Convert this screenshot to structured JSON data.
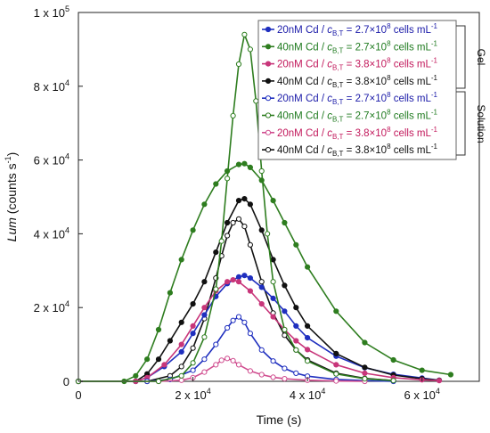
{
  "chart_data": {
    "type": "line",
    "xlabel": "Time (s)",
    "ylabel_main": "Lum",
    "ylabel_units": "(counts s",
    "ylabel_exp": "-1",
    "ylabel_close": ")",
    "xlim": [
      0,
      70000
    ],
    "ylim": [
      0,
      100000
    ],
    "x_ticks": [
      {
        "value": 0,
        "base": "0",
        "exp": ""
      },
      {
        "value": 20000,
        "base": "2 x 10",
        "exp": "4"
      },
      {
        "value": 40000,
        "base": "4 x 10",
        "exp": "4"
      },
      {
        "value": 60000,
        "base": "6 x 10",
        "exp": "4"
      }
    ],
    "y_ticks": [
      {
        "value": 0,
        "base": "0",
        "exp": ""
      },
      {
        "value": 20000,
        "base": "2 x 10",
        "exp": "4"
      },
      {
        "value": 40000,
        "base": "4 x 10",
        "exp": "4"
      },
      {
        "value": 60000,
        "base": "6 x 10",
        "exp": "4"
      },
      {
        "value": 80000,
        "base": "8 x 10",
        "exp": "4"
      },
      {
        "value": 100000,
        "base": "1 x 10",
        "exp": "5"
      }
    ],
    "legend_placement": "top-right",
    "group_labels": [
      "Gel",
      "Solution"
    ],
    "series": [
      {
        "name_conc": "20nM Cd / ",
        "name_sub": "B,T",
        "name_val": "= 2.7×10",
        "name_exp": "8",
        "name_unit": " cells mL",
        "name_unit_exp": "-1",
        "text_color": "#1a1aa8",
        "color": "#1f2fbf",
        "marker": "filled",
        "group": "Gel",
        "x": [
          0,
          10000,
          12000,
          15000,
          18000,
          20000,
          22000,
          24000,
          26000,
          28000,
          29000,
          30000,
          32000,
          34000,
          36000,
          38000,
          40000,
          45000,
          50000,
          55000,
          60000,
          63000
        ],
        "y": [
          0,
          0,
          1000,
          4000,
          8000,
          13000,
          18000,
          23000,
          26500,
          28300,
          28700,
          28000,
          25500,
          22500,
          19000,
          15000,
          11800,
          6800,
          3700,
          1900,
          900,
          300
        ]
      },
      {
        "name_conc": "40nM Cd / ",
        "name_sub": "B,T",
        "name_val": "= 2.7×10",
        "name_exp": "8",
        "name_unit": " cells mL",
        "name_unit_exp": "-1",
        "text_color": "#1e7a1e",
        "color": "#2e7d1f",
        "marker": "filled",
        "group": "Gel",
        "x": [
          0,
          8000,
          10000,
          12000,
          14000,
          16000,
          18000,
          20000,
          22000,
          24000,
          26000,
          28000,
          29000,
          30000,
          32000,
          34000,
          36000,
          38000,
          40000,
          45000,
          50000,
          55000,
          60000,
          65000
        ],
        "y": [
          0,
          0,
          1500,
          6000,
          14000,
          24000,
          33000,
          41000,
          48000,
          53500,
          57000,
          58800,
          59000,
          58000,
          54500,
          49000,
          43000,
          37000,
          31000,
          19000,
          10500,
          5800,
          3000,
          1800
        ]
      },
      {
        "name_conc": "20nM Cd / ",
        "name_sub": "B,T",
        "name_val": "= 3.8×10",
        "name_exp": "8",
        "name_unit": " cells mL",
        "name_unit_exp": "-1",
        "text_color": "#c2185b",
        "color": "#c8367a",
        "marker": "filled",
        "group": "Gel",
        "x": [
          0,
          10000,
          12000,
          15000,
          18000,
          20000,
          22000,
          24000,
          26000,
          27000,
          28000,
          30000,
          32000,
          34000,
          36000,
          38000,
          40000,
          45000,
          50000,
          55000,
          60000,
          63000
        ],
        "y": [
          0,
          0,
          1000,
          4500,
          10000,
          15000,
          20000,
          24500,
          27000,
          27500,
          27000,
          24500,
          21000,
          17500,
          14000,
          11000,
          8600,
          4500,
          2200,
          1000,
          400,
          200
        ]
      },
      {
        "name_conc": "40nM Cd / ",
        "name_sub": "B,T",
        "name_val": "= 3.8×10",
        "name_exp": "8",
        "name_unit": " cells mL",
        "name_unit_exp": "-1",
        "text_color": "#111111",
        "color": "#111111",
        "marker": "filled",
        "group": "Gel",
        "x": [
          0,
          10000,
          12000,
          14000,
          16000,
          18000,
          20000,
          22000,
          24000,
          26000,
          28000,
          29000,
          30000,
          32000,
          34000,
          36000,
          38000,
          40000,
          45000,
          50000,
          55000,
          60000,
          63000
        ],
        "y": [
          0,
          0,
          2000,
          6000,
          11000,
          16000,
          21000,
          27000,
          35000,
          43000,
          49000,
          49500,
          48000,
          41000,
          33000,
          26000,
          20000,
          15000,
          7500,
          3800,
          1700,
          700,
          300
        ]
      },
      {
        "name_conc": "20nM Cd / ",
        "name_sub": "B,T",
        "name_val": "= 2.7×10",
        "name_exp": "8",
        "name_unit": " cells mL",
        "name_unit_exp": "-1",
        "text_color": "#1a1aa8",
        "color": "#1f2fbf",
        "marker": "open",
        "group": "Solution",
        "x": [
          0,
          12000,
          16000,
          20000,
          22000,
          24000,
          26000,
          27000,
          28000,
          29000,
          30000,
          32000,
          34000,
          36000,
          38000,
          40000,
          45000,
          50000,
          55000
        ],
        "y": [
          0,
          0,
          500,
          3000,
          6000,
          10000,
          14500,
          16500,
          17500,
          16000,
          13000,
          8500,
          5500,
          3500,
          2200,
          1400,
          500,
          200,
          0
        ]
      },
      {
        "name_conc": "40nM Cd / ",
        "name_sub": "B,T",
        "name_val": "= 2.7×10",
        "name_exp": "8",
        "name_unit": " cells mL",
        "name_unit_exp": "-1",
        "text_color": "#1e7a1e",
        "color": "#2e7d1f",
        "marker": "open",
        "group": "Solution",
        "x": [
          0,
          14000,
          18000,
          20000,
          22000,
          24000,
          25000,
          26000,
          27000,
          28000,
          29000,
          30000,
          31000,
          32000,
          33000,
          34000,
          36000,
          38000,
          40000,
          45000,
          50000,
          55000
        ],
        "y": [
          0,
          0,
          1500,
          5000,
          12000,
          25000,
          38000,
          55000,
          72000,
          86000,
          94000,
          90000,
          76000,
          57000,
          40000,
          27000,
          14000,
          8500,
          5500,
          2000,
          700,
          200
        ]
      },
      {
        "name_conc": "20nM Cd / ",
        "name_sub": "B,T",
        "name_val": "= 3.8×10",
        "name_exp": "8",
        "name_unit": " cells mL",
        "name_unit_exp": "-1",
        "text_color": "#c2185b",
        "color": "#d04d8f",
        "marker": "open",
        "group": "Solution",
        "x": [
          0,
          14000,
          18000,
          20000,
          22000,
          24000,
          25000,
          26000,
          27000,
          28000,
          30000,
          32000,
          34000,
          36000,
          40000,
          45000,
          50000
        ],
        "y": [
          0,
          0,
          300,
          1000,
          2500,
          4500,
          5700,
          6200,
          5600,
          4500,
          2800,
          1800,
          1100,
          700,
          300,
          100,
          0
        ]
      },
      {
        "name_conc": "40nM Cd / ",
        "name_sub": "B,T",
        "name_val": "= 3.8×10",
        "name_exp": "8",
        "name_unit": " cells mL",
        "name_unit_exp": "-1",
        "text_color": "#111111",
        "color": "#111111",
        "marker": "open",
        "group": "Solution",
        "x": [
          0,
          12000,
          16000,
          18000,
          20000,
          22000,
          24000,
          25000,
          26000,
          27000,
          28000,
          29000,
          30000,
          32000,
          34000,
          36000,
          38000,
          40000,
          45000,
          50000,
          55000
        ],
        "y": [
          0,
          0,
          1500,
          4000,
          9000,
          17000,
          28000,
          34000,
          39500,
          43000,
          44000,
          42000,
          37000,
          27000,
          18500,
          12500,
          8500,
          5800,
          2200,
          800,
          200
        ]
      }
    ]
  }
}
